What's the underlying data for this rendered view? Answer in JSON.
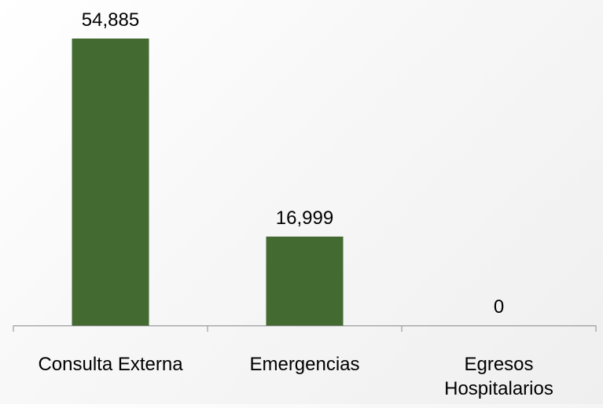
{
  "chart_data": {
    "type": "bar",
    "title": "",
    "xlabel": "",
    "ylabel": "",
    "categories": [
      "Consulta Externa",
      "Emergencias",
      "Egresos Hospitalarios"
    ],
    "category_lines": [
      [
        "Consulta Externa"
      ],
      [
        "Emergencias"
      ],
      [
        "Egresos",
        "Hospitalarios"
      ]
    ],
    "values": [
      54885,
      16999,
      0
    ],
    "data_labels": [
      "54,885",
      "16,999",
      "0"
    ],
    "ylim": [
      0,
      54885
    ],
    "grid": false,
    "legend": "none",
    "colors": {
      "bar": "#436a31",
      "axis": "#8c8c8c",
      "text": "#000000"
    }
  }
}
